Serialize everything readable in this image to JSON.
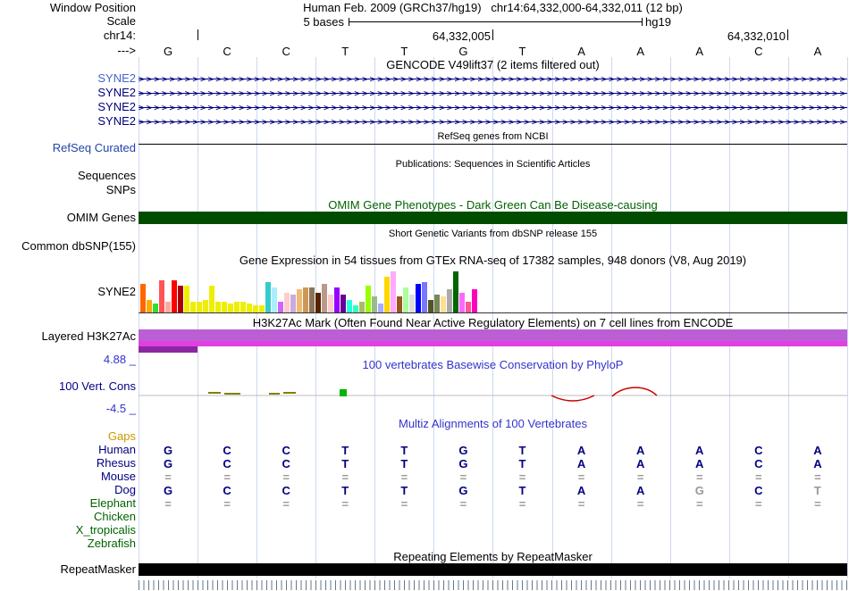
{
  "header": {
    "window_position_label": "Window Position",
    "title": "Human Feb. 2009 (GRCh37/hg19)   chr14:64,332,000-64,332,011 (12 bp)",
    "scale_label": "Scale",
    "scale_text": "5 bases",
    "assembly": "hg19",
    "chrom_label": "chr14:",
    "coord_mid": "64,332,005",
    "coord_right": "64,332,010",
    "strand_label": "--->",
    "bases": [
      "G",
      "C",
      "C",
      "T",
      "T",
      "G",
      "T",
      "A",
      "A",
      "A",
      "C",
      "A"
    ]
  },
  "tracks": {
    "gencode": {
      "title": "GENCODE V49lift37 (2 items filtered out)",
      "arrow_char": ">",
      "items": [
        {
          "label": "SYNE2",
          "label_color": "#4466cc"
        },
        {
          "label": "SYNE2",
          "label_color": "#000080"
        },
        {
          "label": "SYNE2",
          "label_color": "#000080"
        },
        {
          "label": "SYNE2",
          "label_color": "#000080"
        }
      ]
    },
    "refseq": {
      "title": "RefSeq genes from NCBI",
      "label": "RefSeq Curated",
      "label_color": "#2244aa"
    },
    "publications": {
      "title": "Publications: Sequences in Scientific Articles",
      "label_sequences": "Sequences",
      "label_snps": "SNPs"
    },
    "omim": {
      "title": "OMIM Gene Phenotypes - Dark Green Can Be Disease-causing",
      "label": "OMIM Genes",
      "bar_color": "#004d00"
    },
    "dbsnp": {
      "title": "Short Genetic Variants from dbSNP release 155",
      "label": "Common dbSNP(155)"
    },
    "gtex": {
      "title": "Gene Expression in 54 tissues from GTEx RNA-seq of 17382 samples, 948 donors (V8, Aug 2019)",
      "label": "SYNE2",
      "bars": [
        {
          "c": "#FF6600",
          "h": 32
        },
        {
          "c": "#FFAA00",
          "h": 14
        },
        {
          "c": "#33DD33",
          "h": 10
        },
        {
          "c": "#FF5555",
          "h": 36
        },
        {
          "c": "#FFAA99",
          "h": 12
        },
        {
          "c": "#FF0000",
          "h": 36
        },
        {
          "c": "#AA0000",
          "h": 30
        },
        {
          "c": "#EEEE00",
          "h": 30
        },
        {
          "c": "#EEEE00",
          "h": 12
        },
        {
          "c": "#EEEE00",
          "h": 12
        },
        {
          "c": "#EEEE00",
          "h": 14
        },
        {
          "c": "#EEEE00",
          "h": 30
        },
        {
          "c": "#EEEE00",
          "h": 12
        },
        {
          "c": "#EEEE00",
          "h": 12
        },
        {
          "c": "#EEEE00",
          "h": 10
        },
        {
          "c": "#EEEE00",
          "h": 12
        },
        {
          "c": "#EEEE00",
          "h": 12
        },
        {
          "c": "#EEEE00",
          "h": 10
        },
        {
          "c": "#EEEE00",
          "h": 8
        },
        {
          "c": "#EEEE00",
          "h": 8
        },
        {
          "c": "#33CCCC",
          "h": 34
        },
        {
          "c": "#AAEEFF",
          "h": 28
        },
        {
          "c": "#CC66FF",
          "h": 12
        },
        {
          "c": "#FFCCCC",
          "h": 22
        },
        {
          "c": "#CCAADD",
          "h": 20
        },
        {
          "c": "#EEBB77",
          "h": 26
        },
        {
          "c": "#CC9955",
          "h": 28
        },
        {
          "c": "#8B7355",
          "h": 28
        },
        {
          "c": "#552200",
          "h": 22
        },
        {
          "c": "#BB9988",
          "h": 32
        },
        {
          "c": "#FFCCCC",
          "h": 20
        },
        {
          "c": "#9900FF",
          "h": 28
        },
        {
          "c": "#660099",
          "h": 20
        },
        {
          "c": "#22FFDD",
          "h": 14
        },
        {
          "c": "#33FFC2",
          "h": 8
        },
        {
          "c": "#AABB66",
          "h": 12
        },
        {
          "c": "#99FF00",
          "h": 30
        },
        {
          "c": "#99BB88",
          "h": 18
        },
        {
          "c": "#AAAAFF",
          "h": 10
        },
        {
          "c": "#FFD700",
          "h": 40
        },
        {
          "c": "#FFAAFF",
          "h": 46
        },
        {
          "c": "#995522",
          "h": 18
        },
        {
          "c": "#AAFF99",
          "h": 28
        },
        {
          "c": "#DDDDDD",
          "h": 20
        },
        {
          "c": "#0000FF",
          "h": 32
        },
        {
          "c": "#7777FF",
          "h": 34
        },
        {
          "c": "#555522",
          "h": 14
        },
        {
          "c": "#778855",
          "h": 20
        },
        {
          "c": "#FFDD99",
          "h": 18
        },
        {
          "c": "#AAAAAA",
          "h": 26
        },
        {
          "c": "#006600",
          "h": 46
        },
        {
          "c": "#FF66FF",
          "h": 22
        },
        {
          "c": "#FF5599",
          "h": 12
        },
        {
          "c": "#FF00BB",
          "h": 26
        }
      ]
    },
    "h3k27ac": {
      "title": "H3K27Ac Mark (Often Found Near Active Regulatory Elements) on 7 cell lines from ENCODE",
      "label": "Layered H3K27Ac",
      "bar1_color": "#bb5fd4",
      "bar2_color": "#e040e0",
      "bar3_color": "#8b28a0"
    },
    "conservation": {
      "title": "100 vertebrates Basewise Conservation by PhyloP",
      "label": "100 Vert. Cons",
      "max_label": "4.88 _",
      "min_label": "-4.5 _"
    },
    "multiz": {
      "title": "Multiz Alignments of 100 Vertebrates",
      "rows": [
        {
          "label": "Gaps",
          "color": "#cc9900",
          "cells": [],
          "dim": []
        },
        {
          "label": "Human",
          "color": "#000080",
          "cells": [
            "G",
            "C",
            "C",
            "T",
            "T",
            "G",
            "T",
            "A",
            "A",
            "A",
            "C",
            "A"
          ],
          "dim": []
        },
        {
          "label": "Rhesus",
          "color": "#000080",
          "cells": [
            "G",
            "C",
            "C",
            "T",
            "T",
            "G",
            "T",
            "A",
            "A",
            "A",
            "C",
            "A"
          ],
          "dim": []
        },
        {
          "label": "Mouse",
          "color": "#000080",
          "cells": [
            "=",
            "=",
            "=",
            "=",
            "=",
            "=",
            "=",
            "=",
            "=",
            "=",
            "=",
            "="
          ],
          "dim": []
        },
        {
          "label": "Dog",
          "color": "#000080",
          "cells": [
            "G",
            "C",
            "C",
            "T",
            "T",
            "G",
            "T",
            "A",
            "A",
            "G",
            "C",
            "T"
          ],
          "dim": [
            9,
            11
          ]
        },
        {
          "label": "Elephant",
          "color": "#006400",
          "cells": [
            "=",
            "=",
            "=",
            "=",
            "=",
            "=",
            "=",
            "=",
            "=",
            "=",
            "=",
            "="
          ],
          "dim": []
        },
        {
          "label": "Chicken",
          "color": "#006400",
          "cells": [],
          "dim": []
        },
        {
          "label": "X_tropicalis",
          "color": "#006400",
          "cells": [],
          "dim": []
        },
        {
          "label": "Zebrafish",
          "color": "#006400",
          "cells": [],
          "dim": []
        }
      ]
    },
    "repeatmasker": {
      "title": "Repeating Elements by RepeatMasker",
      "label": "RepeatMasker",
      "bar_color": "#000000"
    }
  }
}
